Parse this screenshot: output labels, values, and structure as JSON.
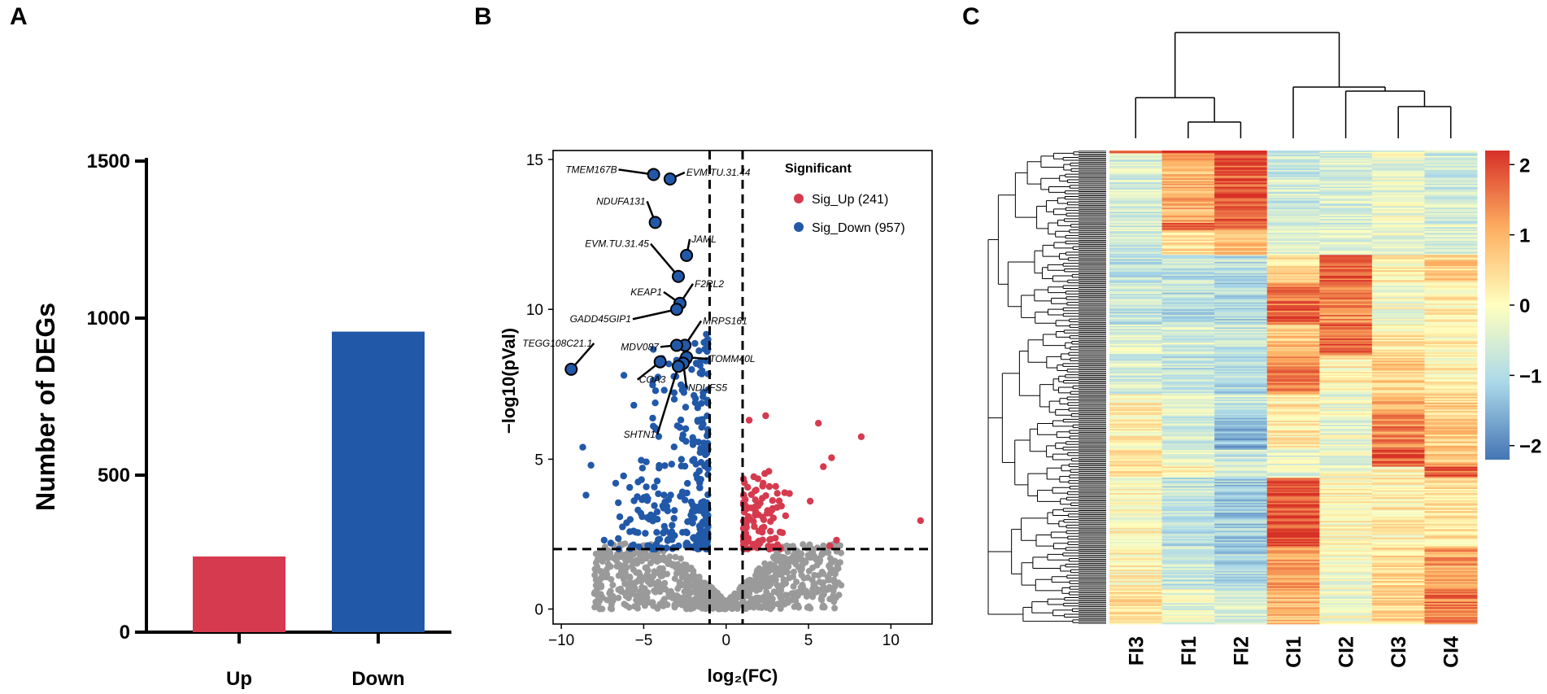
{
  "panels": {
    "a": "A",
    "b": "B",
    "c": "C"
  },
  "colors": {
    "up": "#d63a4e",
    "down": "#2158a8",
    "ns": "#9a9a9a"
  },
  "chart_data": [
    {
      "type": "bar",
      "panel": "A",
      "title": "",
      "xlabel": "",
      "ylabel": "Number of DEGs",
      "categories": [
        "Up",
        "Down"
      ],
      "values": [
        241,
        957
      ],
      "ylim": [
        0,
        1500
      ],
      "yticks": [
        0,
        500,
        1000,
        1500
      ]
    },
    {
      "type": "scatter",
      "panel": "B",
      "title": "",
      "xlabel": "log₂(FC)",
      "ylabel": "−log10(pVal)",
      "xlim": [
        -10.5,
        12.5
      ],
      "ylim": [
        -0.5,
        15.3
      ],
      "xticks": [
        -10,
        -5,
        0,
        5,
        10
      ],
      "yticks": [
        0,
        5,
        10,
        15
      ],
      "thresholds": {
        "log2fc": [
          -1,
          1
        ],
        "neglog10p": 2
      },
      "legend": {
        "title": "Significant",
        "entries": [
          "Sig_Up (241)",
          "Sig_Down (957)"
        ],
        "position": "top-right"
      },
      "labeled_genes": [
        {
          "name": "TMEM167B",
          "x": -4.4,
          "y": 14.5
        },
        {
          "name": "EVM.TU.31.44",
          "x": -3.4,
          "y": 14.35
        },
        {
          "name": "NDUFA131",
          "x": -4.3,
          "y": 12.9
        },
        {
          "name": "JAML",
          "x": -2.4,
          "y": 11.8
        },
        {
          "name": "EVM.TU.31.45",
          "x": -2.9,
          "y": 11.1
        },
        {
          "name": "KEAP1",
          "x": -2.8,
          "y": 10.2
        },
        {
          "name": "F2RL2",
          "x": -2.8,
          "y": 10.2
        },
        {
          "name": "GADD45GIP1",
          "x": -3.0,
          "y": 10.0
        },
        {
          "name": "MRPS161",
          "x": -2.5,
          "y": 8.8
        },
        {
          "name": "MDV087",
          "x": -3.0,
          "y": 8.8
        },
        {
          "name": "TOMM40L",
          "x": -2.4,
          "y": 8.4
        },
        {
          "name": "TEGG108C21.1",
          "x": -9.4,
          "y": 8.0
        },
        {
          "name": "COA3",
          "x": -4.0,
          "y": 8.25
        },
        {
          "name": "NDUFS5",
          "x": -2.6,
          "y": 8.2
        },
        {
          "name": "SHTN1",
          "x": -2.9,
          "y": 8.1
        }
      ],
      "outliers_up": [
        [
          11.8,
          2.95
        ],
        [
          8.2,
          5.75
        ],
        [
          6.4,
          5.05
        ],
        [
          5.6,
          6.2
        ],
        [
          5.9,
          4.75
        ],
        [
          6.7,
          2.3
        ],
        [
          6.3,
          2.1
        ],
        [
          5.1,
          3.6
        ],
        [
          2.4,
          6.45
        ],
        [
          1.4,
          6.3
        ]
      ],
      "outliers_down": [
        [
          -8.7,
          5.4
        ],
        [
          -8.2,
          4.8
        ],
        [
          -8.5,
          3.8
        ],
        [
          -7.4,
          2.3
        ],
        [
          -6.7,
          4.2
        ],
        [
          -6.2,
          7.8
        ],
        [
          -5.6,
          6.8
        ],
        [
          -7.0,
          2.2
        ]
      ]
    },
    {
      "type": "heatmap",
      "panel": "C",
      "columns": [
        "FI3",
        "FI1",
        "FI2",
        "CI1",
        "CI2",
        "CI3",
        "CI4"
      ],
      "colorbar": {
        "min": -2.2,
        "max": 2.2,
        "ticks": [
          2,
          1,
          0,
          -1,
          -2
        ],
        "tick_labels": [
          "2",
          "1",
          "0",
          "−1",
          "−2"
        ]
      },
      "column_dendrogram": "((FI3,(FI1,FI2)),(CI1,(CI2,(CI3,CI4))))",
      "row_blocks": [
        {
          "rows": 2,
          "values": [
            2.2,
            2.1,
            2.1,
            -0.6,
            -0.5,
            -0.5,
            -0.6
          ]
        },
        {
          "rows": 50,
          "values": [
            -0.6,
            1.0,
            1.85,
            -0.6,
            -0.5,
            -0.3,
            -0.6
          ]
        },
        {
          "rows": 5,
          "values": [
            -0.6,
            1.9,
            1.6,
            -0.6,
            -0.6,
            -0.3,
            -0.4
          ]
        },
        {
          "rows": 18,
          "values": [
            -0.6,
            0.5,
            0.7,
            -0.4,
            -0.4,
            -0.3,
            -0.5
          ]
        },
        {
          "rows": 20,
          "values": [
            -0.8,
            -0.8,
            -0.9,
            0.5,
            1.8,
            0.2,
            0.6
          ]
        },
        {
          "rows": 30,
          "values": [
            -0.8,
            -0.9,
            -1.0,
            1.7,
            1.4,
            -0.1,
            0.2
          ]
        },
        {
          "rows": 22,
          "values": [
            -0.5,
            -0.5,
            -0.8,
            0.8,
            1.8,
            0.3,
            0.1
          ]
        },
        {
          "rows": 28,
          "values": [
            -0.6,
            -0.8,
            -1.0,
            1.5,
            0.2,
            0.6,
            0.2
          ]
        },
        {
          "rows": 15,
          "values": [
            0.2,
            -0.3,
            -0.6,
            0.3,
            -0.2,
            1.2,
            0.6
          ]
        },
        {
          "rows": 25,
          "values": [
            0.1,
            -0.6,
            -1.4,
            0.2,
            -0.3,
            1.4,
            0.7
          ]
        },
        {
          "rows": 12,
          "values": [
            0.4,
            -0.3,
            -0.7,
            -0.4,
            -0.3,
            1.7,
            0.9
          ]
        },
        {
          "rows": 8,
          "values": [
            0.2,
            0.1,
            -0.5,
            -0.3,
            -0.2,
            0.3,
            1.7
          ]
        },
        {
          "rows": 50,
          "values": [
            0.0,
            -0.8,
            -1.2,
            1.9,
            0.1,
            0.2,
            0.4
          ]
        },
        {
          "rows": 30,
          "values": [
            0.1,
            -0.7,
            -1.0,
            1.2,
            -0.1,
            0.5,
            1.2
          ]
        },
        {
          "rows": 25,
          "values": [
            0.4,
            -0.3,
            -0.6,
            0.9,
            -0.2,
            0.6,
            1.5
          ]
        }
      ]
    }
  ]
}
